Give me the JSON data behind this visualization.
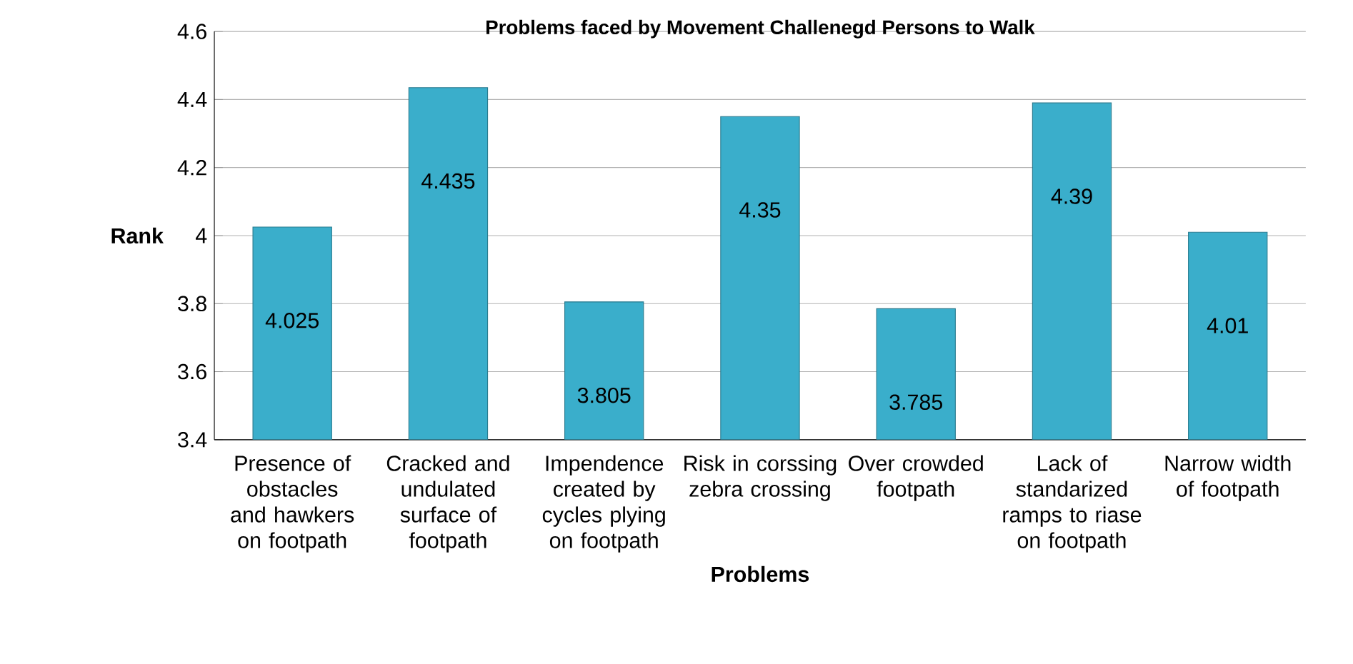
{
  "chart_data": {
    "type": "bar",
    "title": "Problems faced by Movement Challenegd Persons to Walk",
    "xlabel": "Problems",
    "ylabel": "Rank",
    "categories": [
      "Presence of obstacles and hawkers on footpath",
      "Cracked and undulated surface of footpath",
      "Impendence created by cycles plying on footpath",
      "Risk in corssing zebra crossing",
      "Over crowded footpath",
      "Lack of standarized ramps to riase on footpath",
      "Narrow width of footpath"
    ],
    "values": [
      4.025,
      4.435,
      3.805,
      4.35,
      3.785,
      4.39,
      4.01
    ],
    "color": "#3aaecb",
    "ylim": [
      3.4,
      4.6
    ],
    "yticks": [
      3.4,
      3.6,
      3.8,
      4,
      4.2,
      4.4,
      4.6
    ],
    "grid": "y",
    "data_labels": true
  }
}
